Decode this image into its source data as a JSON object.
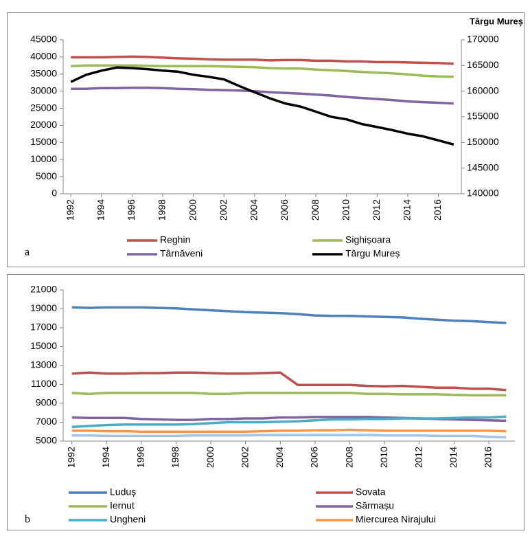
{
  "chart_data": [
    {
      "type": "line",
      "label": "a",
      "y2_label": "Târgu Mureș",
      "x": [
        1992,
        1993,
        1994,
        1995,
        1996,
        1997,
        1998,
        1999,
        2000,
        2001,
        2002,
        2003,
        2004,
        2005,
        2006,
        2007,
        2008,
        2009,
        2010,
        2011,
        2012,
        2013,
        2014,
        2015,
        2016,
        2017
      ],
      "xlim": [
        1991.5,
        2017.5
      ],
      "xticks": [
        1992,
        1994,
        1996,
        1998,
        2000,
        2002,
        2004,
        2006,
        2008,
        2010,
        2012,
        2014,
        2016
      ],
      "ylim": [
        0,
        45000
      ],
      "yticks": [
        0,
        5000,
        10000,
        15000,
        20000,
        25000,
        30000,
        35000,
        40000,
        45000
      ],
      "y2lim": [
        140000,
        170000
      ],
      "y2ticks": [
        140000,
        145000,
        150000,
        155000,
        160000,
        165000,
        170000
      ],
      "legend": "bottom",
      "series": [
        {
          "name": "Reghin",
          "color": "#c0504d",
          "values": [
            39900,
            39900,
            39900,
            40000,
            40100,
            40000,
            39800,
            39600,
            39500,
            39300,
            39200,
            39200,
            39200,
            39000,
            39100,
            39100,
            38900,
            38900,
            38700,
            38700,
            38500,
            38500,
            38400,
            38300,
            38200,
            38000
          ]
        },
        {
          "name": "Sighișoara",
          "color": "#9bbb59",
          "values": [
            37300,
            37500,
            37500,
            37500,
            37500,
            37400,
            37300,
            37300,
            37300,
            37300,
            37200,
            37100,
            37000,
            36700,
            36600,
            36600,
            36300,
            36100,
            35900,
            35600,
            35400,
            35200,
            34900,
            34500,
            34300,
            34200
          ]
        },
        {
          "name": "Târnăveni",
          "color": "#8064a2",
          "values": [
            30700,
            30700,
            30900,
            30900,
            31000,
            31000,
            30900,
            30700,
            30600,
            30400,
            30300,
            30200,
            30000,
            29700,
            29500,
            29300,
            29000,
            28700,
            28300,
            28000,
            27700,
            27400,
            27000,
            26800,
            26600,
            26400
          ]
        },
        {
          "name": "Târgu Mureș",
          "color": "#000000",
          "axis": "y2",
          "values": [
            161800,
            163200,
            164000,
            164600,
            164500,
            164300,
            164000,
            163800,
            163200,
            162800,
            162300,
            161000,
            159800,
            158600,
            157600,
            157000,
            156000,
            155000,
            154500,
            153600,
            153000,
            152400,
            151700,
            151200,
            150400,
            149600
          ]
        }
      ]
    },
    {
      "type": "line",
      "label": "b",
      "x": [
        1992,
        1993,
        1994,
        1995,
        1996,
        1997,
        1998,
        1999,
        2000,
        2001,
        2002,
        2003,
        2004,
        2005,
        2006,
        2007,
        2008,
        2009,
        2010,
        2011,
        2012,
        2013,
        2014,
        2015,
        2016,
        2017
      ],
      "xlim": [
        1991.5,
        2017.5
      ],
      "xticks": [
        1992,
        1994,
        1996,
        1998,
        2000,
        2002,
        2004,
        2006,
        2008,
        2010,
        2012,
        2014,
        2016
      ],
      "ylim": [
        5000,
        21000
      ],
      "yticks": [
        5000,
        7000,
        9000,
        11000,
        13000,
        15000,
        17000,
        19000,
        21000
      ],
      "legend": "bottom",
      "series": [
        {
          "name": "Luduș",
          "color": "#4f81bd",
          "values": [
            19150,
            19100,
            19150,
            19150,
            19150,
            19100,
            19050,
            18950,
            18850,
            18750,
            18650,
            18600,
            18550,
            18450,
            18300,
            18250,
            18250,
            18200,
            18150,
            18100,
            17950,
            17850,
            17750,
            17700,
            17600,
            17500
          ]
        },
        {
          "name": "Sovata",
          "color": "#c0504d",
          "values": [
            12150,
            12250,
            12150,
            12150,
            12200,
            12200,
            12250,
            12250,
            12200,
            12150,
            12150,
            12200,
            12250,
            10950,
            10950,
            10950,
            10950,
            10850,
            10800,
            10850,
            10750,
            10650,
            10650,
            10550,
            10550,
            10400
          ]
        },
        {
          "name": "Iernut",
          "color": "#9bbb59",
          "values": [
            10100,
            10000,
            10100,
            10100,
            10100,
            10100,
            10100,
            10100,
            10000,
            10000,
            10100,
            10100,
            10100,
            10100,
            10100,
            10100,
            10100,
            10000,
            10000,
            9950,
            9950,
            9950,
            9900,
            9850,
            9850,
            9850
          ]
        },
        {
          "name": "Sărmașu",
          "color": "#8064a2",
          "values": [
            7500,
            7450,
            7450,
            7450,
            7350,
            7300,
            7250,
            7250,
            7350,
            7350,
            7400,
            7400,
            7500,
            7500,
            7550,
            7550,
            7550,
            7550,
            7500,
            7450,
            7400,
            7350,
            7300,
            7250,
            7200,
            7150
          ]
        },
        {
          "name": "Ungheni",
          "color": "#4bacc6",
          "values": [
            6500,
            6600,
            6700,
            6750,
            6750,
            6750,
            6750,
            6800,
            6900,
            7000,
            7000,
            7000,
            7050,
            7100,
            7200,
            7300,
            7300,
            7350,
            7350,
            7400,
            7400,
            7400,
            7450,
            7500,
            7500,
            7600
          ]
        },
        {
          "name": "Miercurea Nirajului",
          "color": "#f79646",
          "values": [
            6100,
            6100,
            6050,
            6050,
            6000,
            6000,
            6000,
            6000,
            6000,
            6000,
            6000,
            6050,
            6100,
            6100,
            6150,
            6150,
            6200,
            6150,
            6100,
            6100,
            6100,
            6100,
            6100,
            6100,
            6100,
            6050
          ]
        },
        {
          "color": "#a5c3e6",
          "values": [
            5600,
            5600,
            5550,
            5550,
            5550,
            5550,
            5550,
            5600,
            5600,
            5600,
            5600,
            5650,
            5650,
            5650,
            5650,
            5650,
            5650,
            5650,
            5600,
            5600,
            5600,
            5550,
            5550,
            5550,
            5450,
            5400
          ]
        }
      ]
    }
  ]
}
